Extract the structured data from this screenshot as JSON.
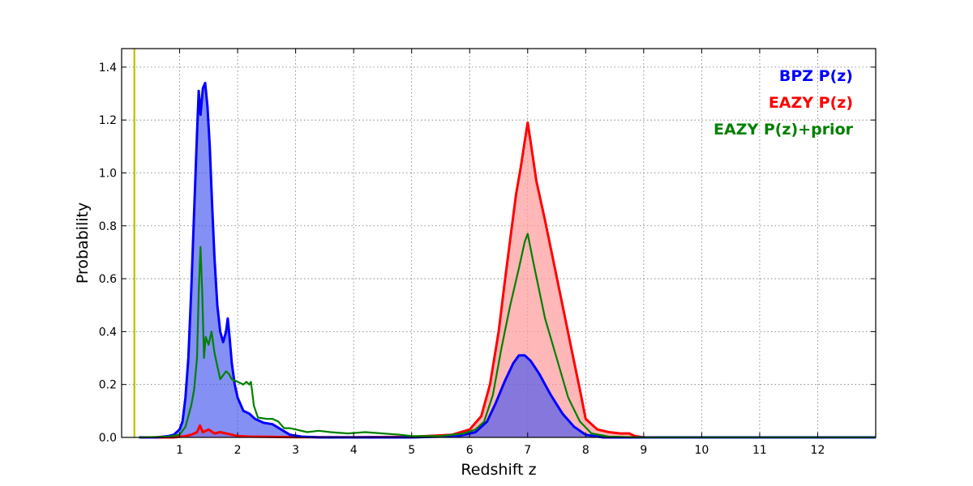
{
  "chart_data": {
    "type": "area",
    "title": "",
    "xlabel": "Redshift z",
    "ylabel": "Probability",
    "xlim": [
      0,
      13
    ],
    "ylim": [
      0,
      1.47
    ],
    "xticks": [
      1,
      2,
      3,
      4,
      5,
      6,
      7,
      8,
      9,
      10,
      11,
      12
    ],
    "yticks": [
      0.0,
      0.2,
      0.4,
      0.6,
      0.8,
      1.0,
      1.2,
      1.4
    ],
    "grid": true,
    "legend_position": "top-right",
    "reference_line": {
      "x": 0.22,
      "color": "#bfbf00"
    },
    "series": [
      {
        "name": "BPZ P(z)",
        "color": "#0000ff",
        "fill": "#4455ee",
        "filled": true,
        "x": [
          0.3,
          0.6,
          0.8,
          0.9,
          1.0,
          1.05,
          1.1,
          1.15,
          1.2,
          1.25,
          1.3,
          1.33,
          1.36,
          1.4,
          1.44,
          1.48,
          1.52,
          1.56,
          1.6,
          1.65,
          1.7,
          1.75,
          1.8,
          1.83,
          1.86,
          1.9,
          1.95,
          2.0,
          2.1,
          2.2,
          2.3,
          2.45,
          2.6,
          2.75,
          2.9,
          3.1,
          3.4,
          4.0,
          5.0,
          5.8,
          6.1,
          6.3,
          6.45,
          6.6,
          6.75,
          6.85,
          6.95,
          7.05,
          7.2,
          7.4,
          7.6,
          7.8,
          8.0,
          8.3,
          9.0,
          13.0
        ],
        "values": [
          0.0,
          0.0,
          0.005,
          0.01,
          0.03,
          0.06,
          0.15,
          0.3,
          0.55,
          0.85,
          1.15,
          1.31,
          1.22,
          1.32,
          1.34,
          1.25,
          1.1,
          0.88,
          0.68,
          0.5,
          0.4,
          0.36,
          0.4,
          0.45,
          0.38,
          0.28,
          0.2,
          0.15,
          0.1,
          0.09,
          0.07,
          0.055,
          0.05,
          0.03,
          0.01,
          0.003,
          0.0,
          0.0,
          0.0,
          0.005,
          0.02,
          0.06,
          0.13,
          0.21,
          0.28,
          0.31,
          0.31,
          0.29,
          0.24,
          0.16,
          0.09,
          0.04,
          0.01,
          0.0,
          0.0,
          0.0
        ]
      },
      {
        "name": "EAZY P(z)",
        "color": "#ff0000",
        "fill": "#ff9999",
        "filled": true,
        "x": [
          0.3,
          0.9,
          1.1,
          1.2,
          1.3,
          1.35,
          1.4,
          1.5,
          1.6,
          1.7,
          1.9,
          2.0,
          2.2,
          2.5,
          3.0,
          4.0,
          5.0,
          5.7,
          6.0,
          6.2,
          6.35,
          6.5,
          6.6,
          6.7,
          6.8,
          6.88,
          6.95,
          7.0,
          7.05,
          7.15,
          7.3,
          7.45,
          7.6,
          7.75,
          7.9,
          8.0,
          8.2,
          8.4,
          8.6,
          8.75,
          8.85,
          9.0,
          13.0
        ],
        "values": [
          0.0,
          0.0,
          0.005,
          0.01,
          0.02,
          0.045,
          0.02,
          0.03,
          0.015,
          0.02,
          0.01,
          0.005,
          0.003,
          0.002,
          0.001,
          0.001,
          0.002,
          0.01,
          0.03,
          0.08,
          0.2,
          0.4,
          0.58,
          0.75,
          0.92,
          1.02,
          1.12,
          1.19,
          1.12,
          0.97,
          0.82,
          0.66,
          0.5,
          0.34,
          0.18,
          0.07,
          0.03,
          0.02,
          0.015,
          0.015,
          0.005,
          0.0,
          0.0
        ]
      },
      {
        "name": "EAZY P(z)+prior",
        "color": "#008000",
        "fill": "none",
        "filled": false,
        "x": [
          0.3,
          0.8,
          1.0,
          1.1,
          1.15,
          1.2,
          1.25,
          1.3,
          1.33,
          1.36,
          1.39,
          1.42,
          1.45,
          1.5,
          1.55,
          1.6,
          1.65,
          1.7,
          1.8,
          1.85,
          1.9,
          2.0,
          2.1,
          2.15,
          2.2,
          2.23,
          2.28,
          2.35,
          2.5,
          2.6,
          2.7,
          2.8,
          2.9,
          3.0,
          3.2,
          3.4,
          3.6,
          3.9,
          4.2,
          4.5,
          4.8,
          5.0,
          5.5,
          5.9,
          6.1,
          6.25,
          6.4,
          6.55,
          6.7,
          6.85,
          6.95,
          7.0,
          7.1,
          7.3,
          7.5,
          7.7,
          7.9,
          8.1,
          8.4,
          9.0,
          13.0
        ],
        "values": [
          0.0,
          0.003,
          0.01,
          0.04,
          0.08,
          0.12,
          0.18,
          0.3,
          0.55,
          0.72,
          0.55,
          0.3,
          0.38,
          0.35,
          0.4,
          0.32,
          0.27,
          0.22,
          0.25,
          0.24,
          0.22,
          0.21,
          0.2,
          0.21,
          0.2,
          0.21,
          0.12,
          0.075,
          0.07,
          0.07,
          0.06,
          0.035,
          0.035,
          0.03,
          0.02,
          0.025,
          0.02,
          0.015,
          0.02,
          0.015,
          0.01,
          0.005,
          0.005,
          0.015,
          0.03,
          0.06,
          0.16,
          0.34,
          0.5,
          0.64,
          0.74,
          0.77,
          0.66,
          0.45,
          0.3,
          0.15,
          0.06,
          0.015,
          0.003,
          0.0,
          0.0
        ]
      }
    ]
  }
}
